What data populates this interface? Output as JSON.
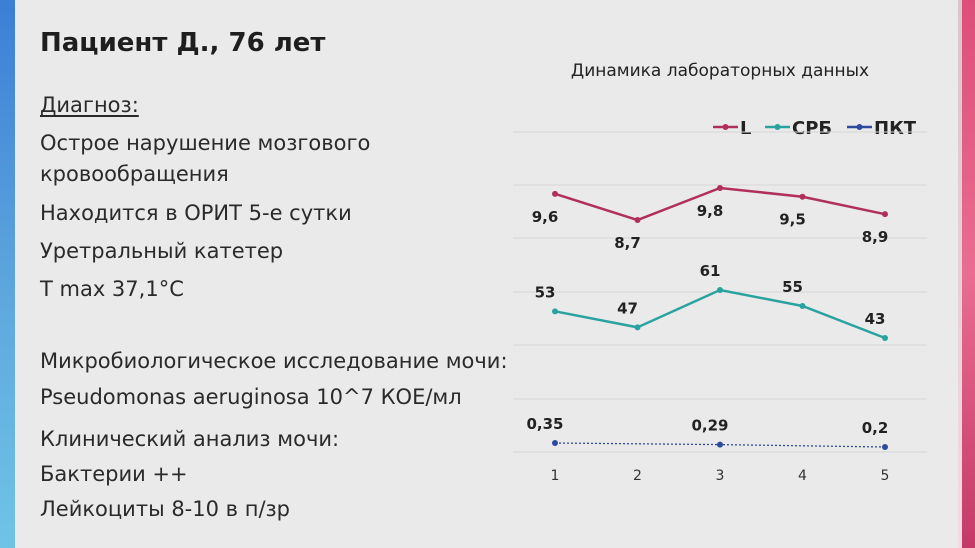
{
  "slide": {
    "title": "Пациент Д., 76 лет",
    "diagnosis_heading": "Диагноз:",
    "lines": [
      "Острое нарушение мозгового",
      "кровообращения",
      "Находится в ОРИТ 5-е сутки",
      "Уретральный катетер",
      "T max 37,1°C"
    ],
    "lines2": [
      "Микробиологическое исследование мочи:",
      "Pseudomonas aeruginosa 10^7 КОЕ/мл",
      "Клинический анализ мочи:",
      "Бактерии ++",
      "Лейкоциты 8-10 в п/зр"
    ]
  },
  "colors": {
    "L": "#b0305a",
    "CRP": "#2aa3a0",
    "PCT": "#2e4a9e",
    "grid": "#d6d6d6"
  },
  "chart_data": {
    "type": "line",
    "title": "Динамика лабораторных данных",
    "legend_position": "top-right",
    "grid": true,
    "x": [
      "1",
      "2",
      "3",
      "4",
      "5"
    ],
    "series": [
      {
        "name": "L",
        "color": "#b0305a",
        "values": [
          9.6,
          8.7,
          9.8,
          9.5,
          8.9
        ],
        "labels": [
          "9,6",
          "8,7",
          "9,8",
          "9,5",
          "8,9"
        ]
      },
      {
        "name": "СРБ",
        "color": "#2aa3a0",
        "values": [
          53,
          47,
          61,
          55,
          43
        ],
        "labels": [
          "53",
          "47",
          "61",
          "55",
          "43"
        ]
      },
      {
        "name": "ПКТ",
        "color": "#2e4a9e",
        "x": [
          "1",
          "3",
          "5"
        ],
        "values": [
          0.35,
          0.29,
          0.2
        ],
        "labels": [
          "0,35",
          "0,29",
          "0,2"
        ]
      }
    ]
  }
}
